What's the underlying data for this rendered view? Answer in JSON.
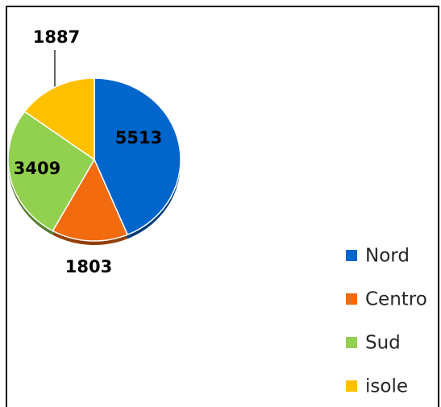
{
  "chart_data": {
    "type": "pie",
    "categories": [
      "Nord",
      "Centro",
      "Sud",
      "isole"
    ],
    "values": [
      5513,
      1803,
      3409,
      1887
    ],
    "colors": [
      "#0066cc",
      "#f26b0f",
      "#92d050",
      "#ffc000"
    ],
    "legend": "right"
  }
}
